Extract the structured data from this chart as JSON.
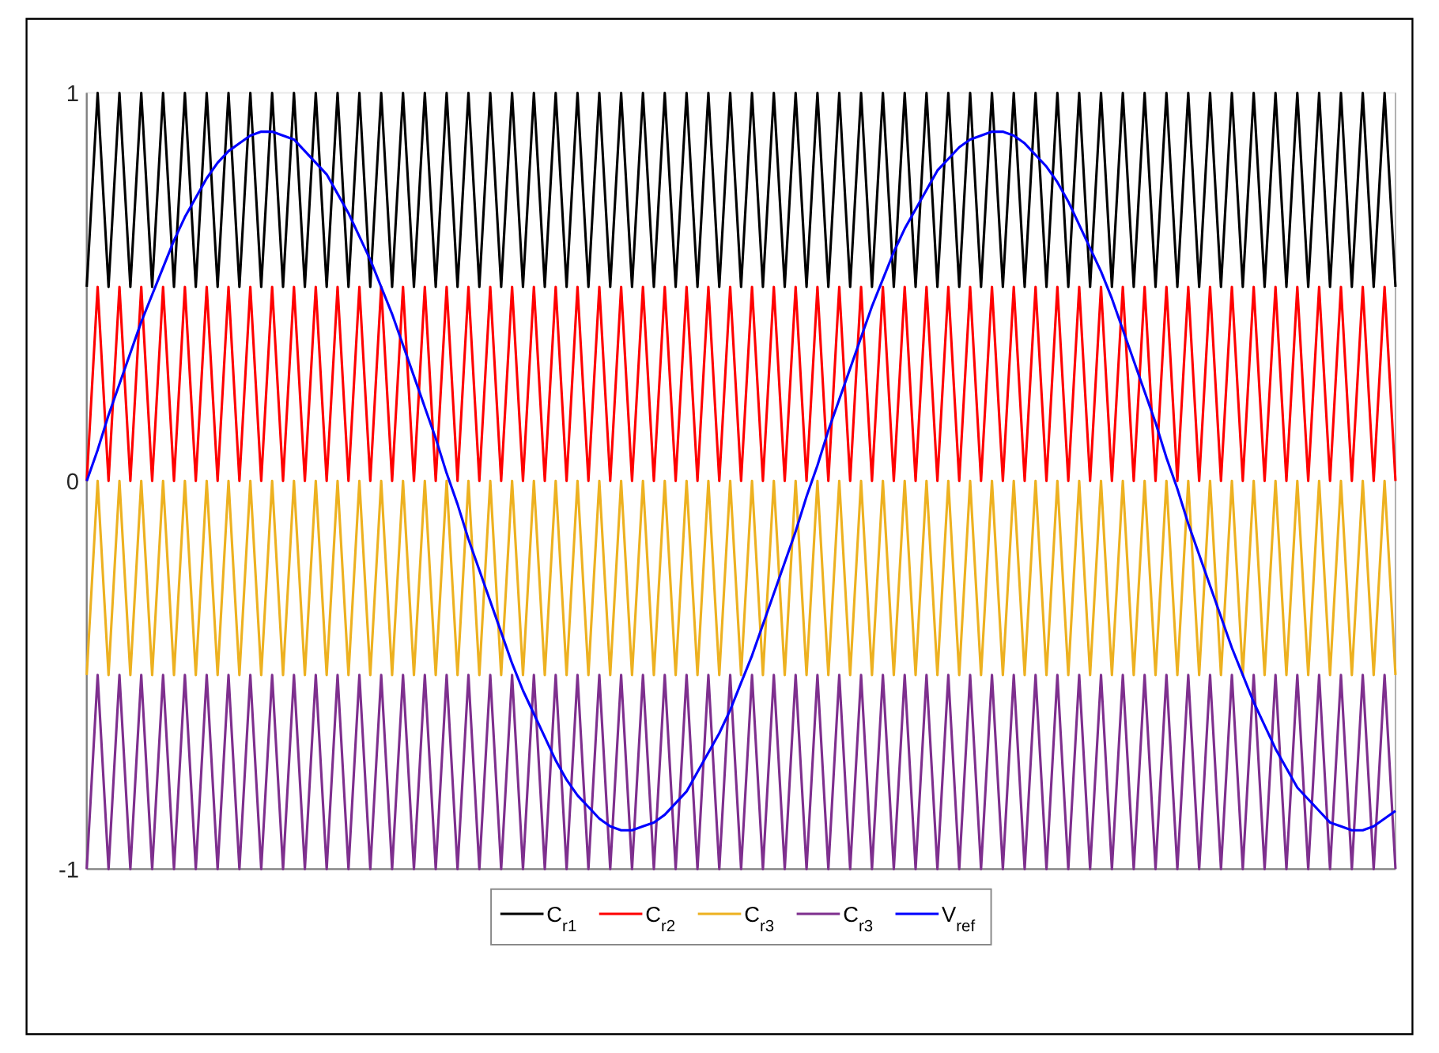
{
  "chart_data": {
    "type": "line",
    "categories": [
      null,
      null,
      null,
      null,
      null,
      null,
      null,
      null,
      null,
      null,
      null,
      null,
      null,
      null,
      null,
      null,
      null,
      null,
      null,
      null,
      null,
      null,
      null,
      null,
      null,
      null,
      null,
      null,
      null,
      null,
      null,
      null,
      null,
      null,
      null,
      null,
      null,
      null,
      null,
      null,
      null,
      null,
      null,
      null,
      null,
      null,
      null,
      null,
      null,
      null,
      null,
      null,
      null,
      null,
      null,
      null,
      null,
      null,
      null,
      null,
      null,
      null,
      null,
      null,
      null,
      null,
      null,
      null,
      null,
      null,
      null,
      null,
      null,
      null,
      null,
      null,
      null,
      null,
      null,
      null,
      null,
      null,
      null,
      null,
      null,
      null,
      null,
      null,
      null,
      null,
      null,
      null,
      null,
      null,
      null,
      null,
      null,
      null,
      null,
      null,
      null,
      null,
      null,
      null,
      null,
      null,
      null,
      null,
      null,
      null,
      null,
      null,
      null,
      null,
      null,
      null,
      null,
      null,
      null,
      null,
      null
    ],
    "ylim": [
      -1,
      1
    ],
    "yticks": [
      -1,
      0,
      1
    ],
    "tick_labels": "y",
    "grid": false,
    "legend": "bottom",
    "line_style": "solid",
    "marker": "none",
    "series": [
      {
        "name": "C$_{r1}$",
        "color": "#000000",
        "values": [
          0.5,
          1,
          0.5,
          1,
          0.5,
          1,
          0.5,
          1,
          0.5,
          1,
          0.5,
          1,
          0.5,
          1,
          0.5,
          1,
          0.5,
          1,
          0.5,
          1,
          0.5,
          1,
          0.5,
          1,
          0.5,
          1,
          0.5,
          1,
          0.5,
          1,
          0.5,
          1,
          0.5,
          1,
          0.5,
          1,
          0.5,
          1,
          0.5,
          1,
          0.5,
          1,
          0.5,
          1,
          0.5,
          1,
          0.5,
          1,
          0.5,
          1,
          0.5,
          1,
          0.5,
          1,
          0.5,
          1,
          0.5,
          1,
          0.5,
          1,
          0.5,
          1,
          0.5,
          1,
          0.5,
          1,
          0.5,
          1,
          0.5,
          1,
          0.5,
          1,
          0.5,
          1,
          0.5,
          1,
          0.5,
          1,
          0.5,
          1,
          0.5,
          1,
          0.5,
          1,
          0.5,
          1,
          0.5,
          1,
          0.5,
          1,
          0.5,
          1,
          0.5,
          1,
          0.5,
          1,
          0.5,
          1,
          0.5,
          1,
          0.5,
          1,
          0.5,
          1,
          0.5,
          1,
          0.5,
          1,
          0.5,
          1,
          0.5,
          1,
          0.5,
          1,
          0.5,
          1,
          0.5,
          1,
          0.5,
          1,
          0.5
        ]
      },
      {
        "name": "C$_{r2}$",
        "color": "#ff0000",
        "values": [
          0,
          0.5,
          0,
          0.5,
          0,
          0.5,
          0,
          0.5,
          0,
          0.5,
          0,
          0.5,
          0,
          0.5,
          0,
          0.5,
          0,
          0.5,
          0,
          0.5,
          0,
          0.5,
          0,
          0.5,
          0,
          0.5,
          0,
          0.5,
          0,
          0.5,
          0,
          0.5,
          0,
          0.5,
          0,
          0.5,
          0,
          0.5,
          0,
          0.5,
          0,
          0.5,
          0,
          0.5,
          0,
          0.5,
          0,
          0.5,
          0,
          0.5,
          0,
          0.5,
          0,
          0.5,
          0,
          0.5,
          0,
          0.5,
          0,
          0.5,
          0,
          0.5,
          0,
          0.5,
          0,
          0.5,
          0,
          0.5,
          0,
          0.5,
          0,
          0.5,
          0,
          0.5,
          0,
          0.5,
          0,
          0.5,
          0,
          0.5,
          0,
          0.5,
          0,
          0.5,
          0,
          0.5,
          0,
          0.5,
          0,
          0.5,
          0,
          0.5,
          0,
          0.5,
          0,
          0.5,
          0,
          0.5,
          0,
          0.5,
          0,
          0.5,
          0,
          0.5,
          0,
          0.5,
          0,
          0.5,
          0,
          0.5,
          0,
          0.5,
          0,
          0.5,
          0,
          0.5,
          0,
          0.5,
          0,
          0.5,
          0
        ]
      },
      {
        "name": "C$_{r3}$",
        "color": "#edb120",
        "values": [
          -0.5,
          0,
          -0.5,
          0,
          -0.5,
          0,
          -0.5,
          0,
          -0.5,
          0,
          -0.5,
          0,
          -0.5,
          0,
          -0.5,
          0,
          -0.5,
          0,
          -0.5,
          0,
          -0.5,
          0,
          -0.5,
          0,
          -0.5,
          0,
          -0.5,
          0,
          -0.5,
          0,
          -0.5,
          0,
          -0.5,
          0,
          -0.5,
          0,
          -0.5,
          0,
          -0.5,
          0,
          -0.5,
          0,
          -0.5,
          0,
          -0.5,
          0,
          -0.5,
          0,
          -0.5,
          0,
          -0.5,
          0,
          -0.5,
          0,
          -0.5,
          0,
          -0.5,
          0,
          -0.5,
          0,
          -0.5,
          0,
          -0.5,
          0,
          -0.5,
          0,
          -0.5,
          0,
          -0.5,
          0,
          -0.5,
          0,
          -0.5,
          0,
          -0.5,
          0,
          -0.5,
          0,
          -0.5,
          0,
          -0.5,
          0,
          -0.5,
          0,
          -0.5,
          0,
          -0.5,
          0,
          -0.5,
          0,
          -0.5,
          0,
          -0.5,
          0,
          -0.5,
          0,
          -0.5,
          0,
          -0.5,
          0,
          -0.5,
          0,
          -0.5,
          0,
          -0.5,
          0,
          -0.5,
          0,
          -0.5,
          0,
          -0.5,
          0,
          -0.5,
          0,
          -0.5,
          0,
          -0.5,
          0,
          -0.5,
          0,
          -0.5
        ]
      },
      {
        "name": "C$_{r3}$",
        "color": "#7e2f8e",
        "values": [
          -1,
          -0.5,
          -1,
          -0.5,
          -1,
          -0.5,
          -1,
          -0.5,
          -1,
          -0.5,
          -1,
          -0.5,
          -1,
          -0.5,
          -1,
          -0.5,
          -1,
          -0.5,
          -1,
          -0.5,
          -1,
          -0.5,
          -1,
          -0.5,
          -1,
          -0.5,
          -1,
          -0.5,
          -1,
          -0.5,
          -1,
          -0.5,
          -1,
          -0.5,
          -1,
          -0.5,
          -1,
          -0.5,
          -1,
          -0.5,
          -1,
          -0.5,
          -1,
          -0.5,
          -1,
          -0.5,
          -1,
          -0.5,
          -1,
          -0.5,
          -1,
          -0.5,
          -1,
          -0.5,
          -1,
          -0.5,
          -1,
          -0.5,
          -1,
          -0.5,
          -1,
          -0.5,
          -1,
          -0.5,
          -1,
          -0.5,
          -1,
          -0.5,
          -1,
          -0.5,
          -1,
          -0.5,
          -1,
          -0.5,
          -1,
          -0.5,
          -1,
          -0.5,
          -1,
          -0.5,
          -1,
          -0.5,
          -1,
          -0.5,
          -1,
          -0.5,
          -1,
          -0.5,
          -1,
          -0.5,
          -1,
          -0.5,
          -1,
          -0.5,
          -1,
          -0.5,
          -1,
          -0.5,
          -1,
          -0.5,
          -1,
          -0.5,
          -1,
          -0.5,
          -1,
          -0.5,
          -1,
          -0.5,
          -1,
          -0.5,
          -1,
          -0.5,
          -1,
          -0.5,
          -1,
          -0.5,
          -1,
          -0.5,
          -1,
          -0.5,
          -1
        ]
      },
      {
        "name": "V$_{ref}$",
        "color": "#0000ff",
        "values": [
          0,
          0.08,
          0.17,
          0.25,
          0.33,
          0.41,
          0.48,
          0.55,
          0.62,
          0.68,
          0.73,
          0.78,
          0.82,
          0.85,
          0.87,
          0.89,
          0.9,
          0.9,
          0.89,
          0.88,
          0.85,
          0.82,
          0.79,
          0.74,
          0.69,
          0.63,
          0.57,
          0.5,
          0.43,
          0.35,
          0.27,
          0.19,
          0.11,
          0.02,
          -0.06,
          -0.15,
          -0.23,
          -0.31,
          -0.39,
          -0.47,
          -0.54,
          -0.6,
          -0.66,
          -0.72,
          -0.77,
          -0.81,
          -0.84,
          -0.87,
          -0.89,
          -0.9,
          -0.9,
          -0.89,
          -0.88,
          -0.86,
          -0.83,
          -0.8,
          -0.75,
          -0.7,
          -0.65,
          -0.59,
          -0.52,
          -0.45,
          -0.37,
          -0.29,
          -0.21,
          -0.13,
          -0.04,
          0.04,
          0.13,
          0.21,
          0.29,
          0.37,
          0.45,
          0.52,
          0.59,
          0.65,
          0.7,
          0.75,
          0.8,
          0.83,
          0.86,
          0.88,
          0.89,
          0.9,
          0.9,
          0.89,
          0.87,
          0.84,
          0.81,
          0.77,
          0.72,
          0.66,
          0.6,
          0.54,
          0.47,
          0.39,
          0.31,
          0.23,
          0.15,
          0.06,
          -0.02,
          -0.11,
          -0.19,
          -0.27,
          -0.35,
          -0.43,
          -0.5,
          -0.57,
          -0.63,
          -0.69,
          -0.74,
          -0.79,
          -0.82,
          -0.85,
          -0.88,
          -0.89,
          -0.9,
          -0.9,
          -0.89,
          -0.87,
          -0.85
        ]
      }
    ]
  }
}
